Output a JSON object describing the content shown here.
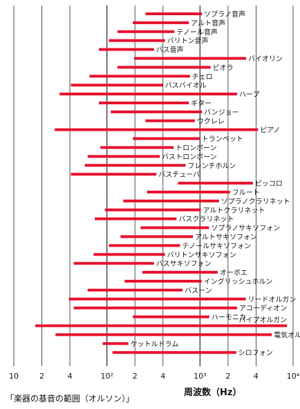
{
  "caption": "「楽器の基音の範囲（オルソン）」",
  "chart_data": {
    "type": "bar",
    "orientation": "horizontal-range",
    "x_scale": "log",
    "xlabel": "周波数（Hz）",
    "xlim": [
      10,
      10000
    ],
    "x_ticks": [
      {
        "value": 10,
        "label": "10"
      },
      {
        "value": 20,
        "label": "2"
      },
      {
        "value": 40,
        "label": "4"
      },
      {
        "value": 100,
        "label": "10²"
      },
      {
        "value": 200,
        "label": "2"
      },
      {
        "value": 400,
        "label": "4"
      },
      {
        "value": 1000,
        "label": "10³"
      },
      {
        "value": 2000,
        "label": "2"
      },
      {
        "value": 4000,
        "label": "4"
      },
      {
        "value": 10000,
        "label": "10⁴"
      }
    ],
    "grid": true,
    "bar_color": "#e8102e",
    "instruments": [
      {
        "name": "ソプラノ音声",
        "low": 260,
        "high": 1050
      },
      {
        "name": "アルト音声",
        "low": 190,
        "high": 760
      },
      {
        "name": "テノール音声",
        "low": 130,
        "high": 530
      },
      {
        "name": "バリトン音声",
        "low": 105,
        "high": 420
      },
      {
        "name": "バス音声",
        "low": 82,
        "high": 320
      },
      {
        "name": "バイオリン",
        "low": 196,
        "high": 3130
      },
      {
        "name": "ビオラ",
        "low": 130,
        "high": 1300
      },
      {
        "name": "チェロ",
        "low": 65,
        "high": 780
      },
      {
        "name": "バスバイオル",
        "low": 41,
        "high": 400
      },
      {
        "name": "ハープ",
        "low": 31,
        "high": 2500
      },
      {
        "name": "ギター",
        "low": 82,
        "high": 760
      },
      {
        "name": "バンジョー",
        "low": 110,
        "high": 1050
      },
      {
        "name": "ウクレレ",
        "low": 260,
        "high": 880
      },
      {
        "name": "ピアノ",
        "low": 27.5,
        "high": 4200
      },
      {
        "name": "トランペット",
        "low": 190,
        "high": 990
      },
      {
        "name": "トロンボーン",
        "low": 85,
        "high": 520
      },
      {
        "name": "バストロンボーン",
        "low": 62,
        "high": 370
      },
      {
        "name": "フレンチホルン",
        "low": 58,
        "high": 700
      },
      {
        "name": "バスチューバ",
        "low": 41,
        "high": 340
      },
      {
        "name": "ピッコロ",
        "low": 580,
        "high": 3700
      },
      {
        "name": "フルート",
        "low": 270,
        "high": 2100
      },
      {
        "name": "ソプラノクラリネット",
        "low": 150,
        "high": 1600
      },
      {
        "name": "アルトクラリネット",
        "low": 95,
        "high": 1020
      },
      {
        "name": "バスクラリネット",
        "low": 74,
        "high": 560
      },
      {
        "name": "ソプラノサキソフォン",
        "low": 230,
        "high": 1250
      },
      {
        "name": "アルトサキソフォン",
        "low": 140,
        "high": 840
      },
      {
        "name": "テノールサキソフォン",
        "low": 105,
        "high": 610
      },
      {
        "name": "バリトンサキソフォン",
        "low": 72,
        "high": 420
      },
      {
        "name": "バスサキソフォン",
        "low": 44,
        "high": 320
      },
      {
        "name": "オーボエ",
        "low": 240,
        "high": 1550
      },
      {
        "name": "イングリッシュホルン",
        "low": 155,
        "high": 1040
      },
      {
        "name": "バスーン",
        "low": 62,
        "high": 650
      },
      {
        "name": "リードオルガン",
        "low": 39,
        "high": 3100
      },
      {
        "name": "アコーディオン",
        "low": 44,
        "high": 2500
      },
      {
        "name": "ハーモニカ",
        "low": 190,
        "high": 1260
      },
      {
        "name": "パイプオルガン",
        "low": 17,
        "high": 8600
      },
      {
        "name": "電気オルガン",
        "low": 28,
        "high": 5900
      },
      {
        "name": "ケットルドラム",
        "low": 90,
        "high": 170
      },
      {
        "name": "シロフォン",
        "low": 115,
        "high": 2450
      }
    ]
  }
}
